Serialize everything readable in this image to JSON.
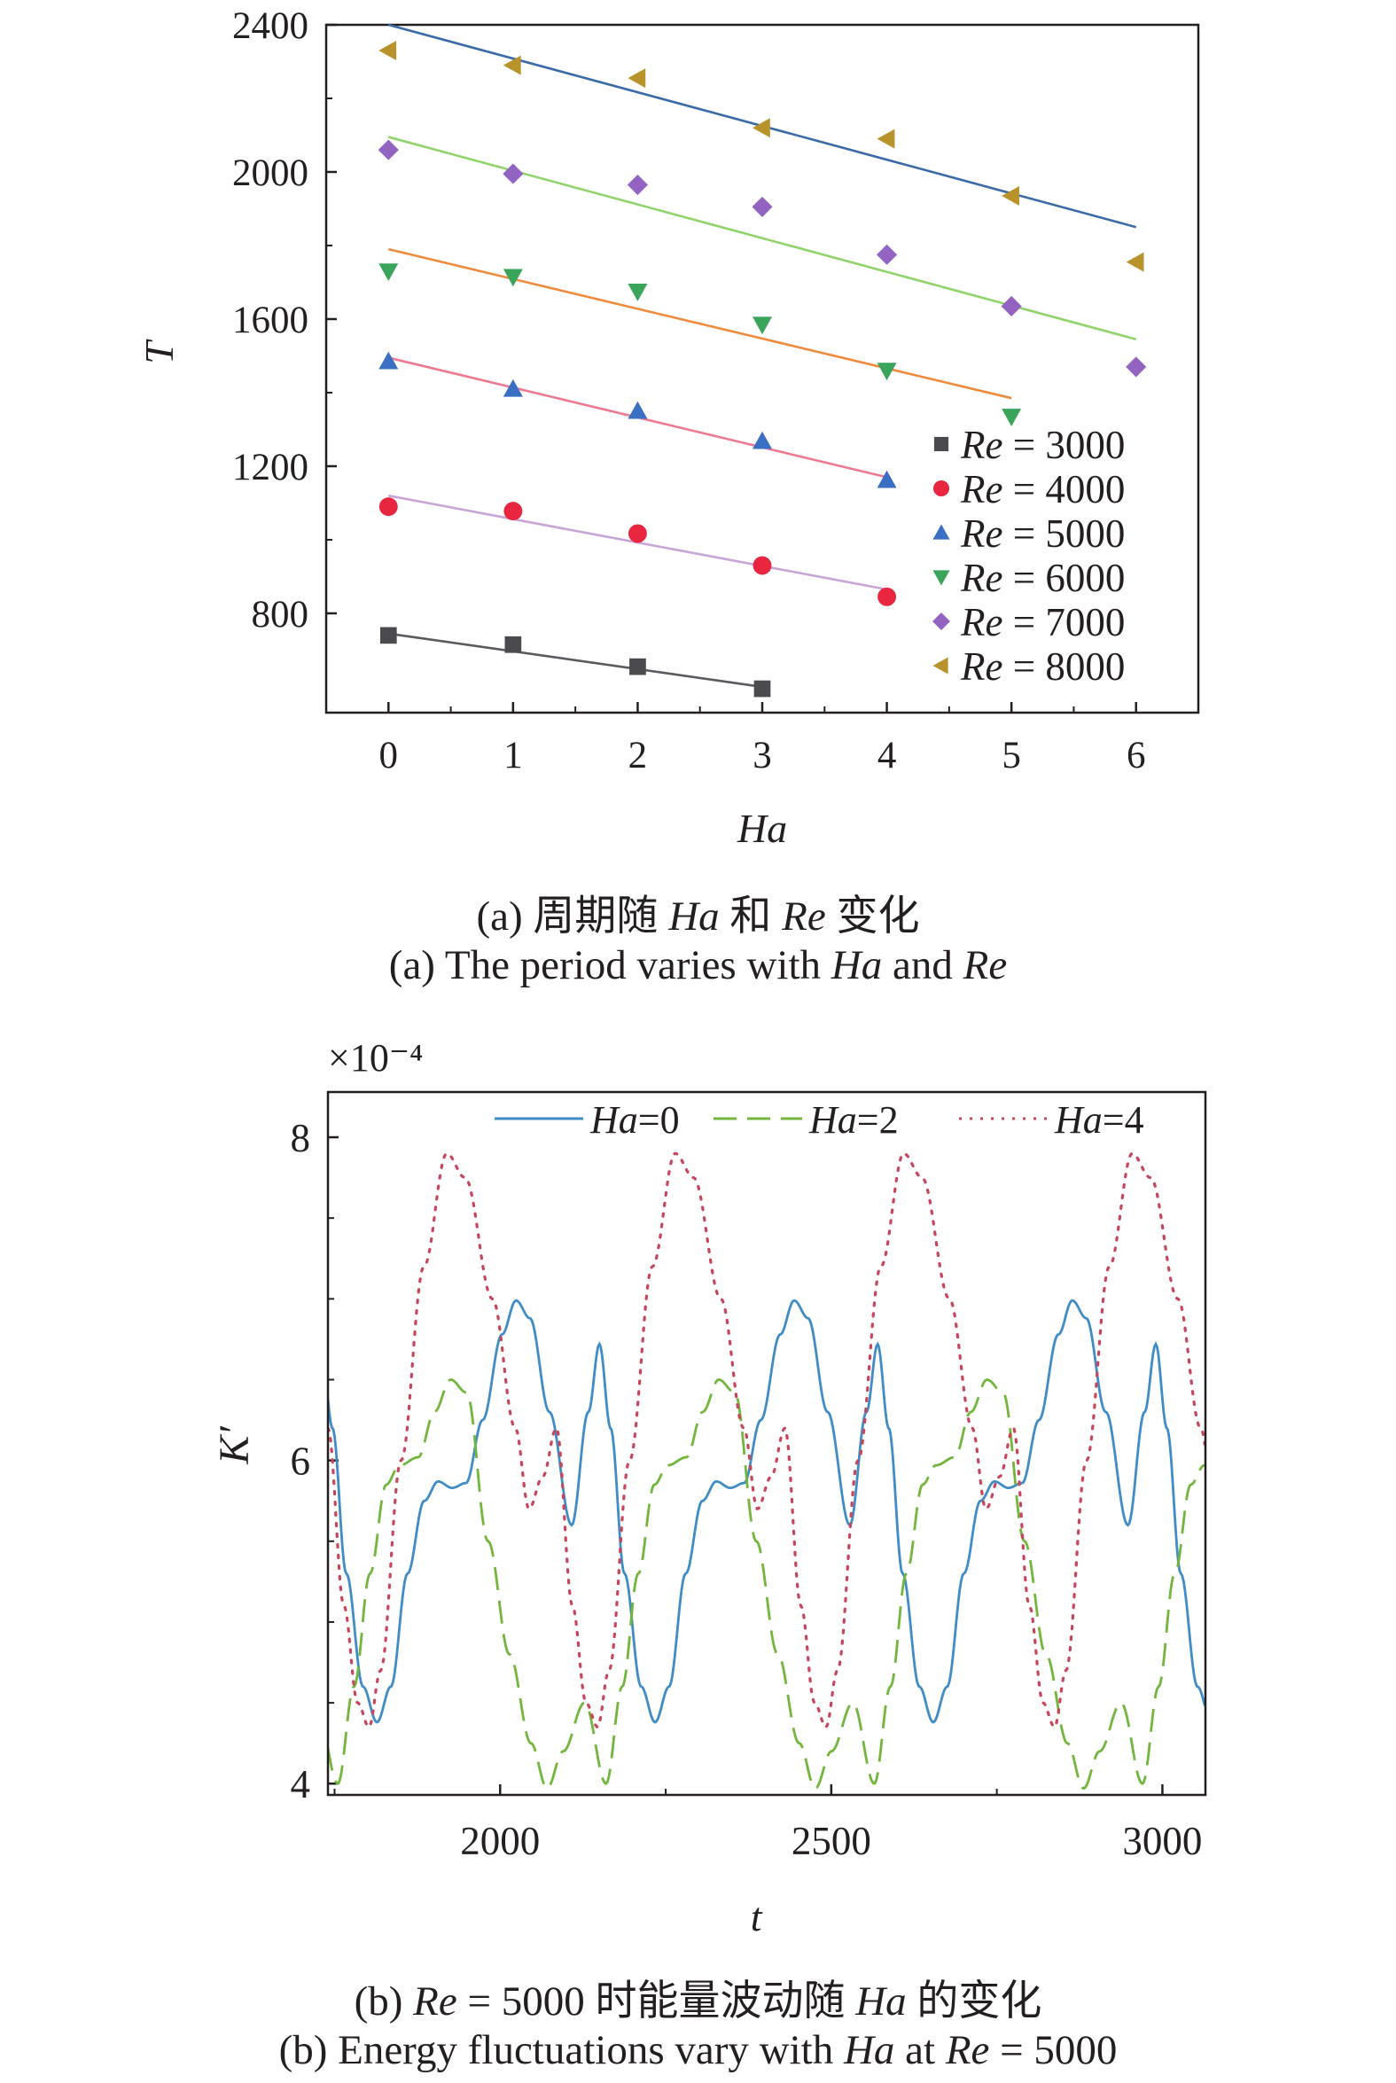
{
  "charts": {
    "a": {
      "chart_data": {
        "type": "scatter",
        "xlabel": "Ha",
        "ylabel": "T",
        "xlim": [
          -0.5,
          6.5
        ],
        "ylim": [
          530,
          2400
        ],
        "xticks": [
          0,
          1,
          2,
          3,
          4,
          5,
          6
        ],
        "yticks": [
          800,
          1200,
          1600,
          2000,
          2400
        ],
        "legend_position": "bottom-right",
        "series": [
          {
            "name": "Re = 3000",
            "label_var": "Re",
            "label_rest": " = 3000",
            "color": "#4a4a4f",
            "marker": "square",
            "x": [
              0,
              1,
              2,
              3
            ],
            "y": [
              740,
              715,
              655,
              595
            ],
            "fit": {
              "x": [
                0,
                3
              ],
              "y": [
                745,
                600
              ]
            }
          },
          {
            "name": "Re = 4000",
            "label_var": "Re",
            "label_rest": " = 4000",
            "color": "#e8263f",
            "marker": "circle",
            "x": [
              0,
              1,
              2,
              3,
              4
            ],
            "y": [
              1090,
              1078,
              1017,
              930,
              845
            ],
            "fit": {
              "x": [
                0,
                4
              ],
              "y": [
                1120,
                865
              ]
            }
          },
          {
            "name": "Re = 5000",
            "label_var": "Re",
            "label_rest": " = 5000",
            "color": "#3a6fc4",
            "marker": "triangle-up",
            "x": [
              0,
              1,
              2,
              3,
              4
            ],
            "y": [
              1485,
              1410,
              1350,
              1268,
              1162
            ],
            "fit": {
              "x": [
                0,
                4
              ],
              "y": [
                1495,
                1170
              ]
            }
          },
          {
            "name": "Re = 6000",
            "label_var": "Re",
            "label_rest": " = 6000",
            "color": "#3aa55a",
            "marker": "triangle-down",
            "x": [
              0,
              1,
              2,
              3,
              4,
              5
            ],
            "y": [
              1730,
              1715,
              1675,
              1585,
              1460,
              1335
            ],
            "fit": {
              "x": [
                0,
                5
              ],
              "y": [
                1790,
                1385
              ]
            }
          },
          {
            "name": "Re = 7000",
            "label_var": "Re",
            "label_rest": " = 7000",
            "color": "#9363c2",
            "marker": "diamond",
            "x": [
              0,
              1,
              2,
              3,
              4,
              5,
              6
            ],
            "y": [
              2060,
              1995,
              1965,
              1905,
              1775,
              1635,
              1470
            ],
            "fit": {
              "x": [
                0,
                6
              ],
              "y": [
                2095,
                1545
              ]
            }
          },
          {
            "name": "Re = 8000",
            "label_var": "Re",
            "label_rest": " = 8000",
            "color": "#b8922a",
            "marker": "triangle-left",
            "x": [
              0,
              1,
              2,
              3,
              4,
              5,
              6
            ],
            "y": [
              2330,
              2290,
              2255,
              2120,
              2090,
              1935,
              1755
            ],
            "fit": {
              "x": [
                0,
                6
              ],
              "y": [
                2400,
                1850
              ]
            }
          }
        ],
        "fit_colors": [
          "#5a5a5f",
          "#c9a4d6",
          "#ee7a92",
          "#f08a3c",
          "#8fd36a",
          "#3b6aa8"
        ]
      },
      "caption_cn": {
        "pre": "(a) 周期随 ",
        "var1": "Ha",
        "mid": " 和 ",
        "var2": "Re",
        "post": " 变化"
      },
      "caption_en": {
        "pre": "(a) The period varies with ",
        "var1": "Ha",
        "mid": " and ",
        "var2": "Re",
        "post": ""
      }
    },
    "b": {
      "chart_data": {
        "type": "line",
        "xlabel": "t",
        "ylabel": "K′",
        "xlim": [
          1740,
          3065
        ],
        "ylim": [
          3.93,
          8.28
        ],
        "xticks": [
          2000,
          2500,
          3000
        ],
        "yticks": [
          4,
          6,
          8
        ],
        "y_multiplier": "×10⁻⁴",
        "legend_position": "top",
        "series": [
          {
            "name": "Ha=0",
            "var": "Ha",
            "rest": "=0",
            "color": "#3f8cc6",
            "style": "solid",
            "period": 420,
            "phase": 1730,
            "shape": [
              [
                0,
                6.72
              ],
              [
                0.04,
                6.2
              ],
              [
                0.09,
                5.3
              ],
              [
                0.15,
                4.6
              ],
              [
                0.2,
                4.38
              ],
              [
                0.25,
                4.6
              ],
              [
                0.31,
                5.3
              ],
              [
                0.37,
                5.75
              ],
              [
                0.42,
                5.87
              ],
              [
                0.47,
                5.83
              ],
              [
                0.52,
                5.86
              ],
              [
                0.58,
                6.25
              ],
              [
                0.65,
                6.78
              ],
              [
                0.7,
                6.99
              ],
              [
                0.75,
                6.88
              ],
              [
                0.82,
                6.3
              ],
              [
                0.9,
                5.6
              ],
              [
                0.96,
                6.3
              ],
              [
                1.0,
                6.72
              ]
            ]
          },
          {
            "name": "Ha=2",
            "var": "Ha",
            "rest": "=2",
            "color": "#72b63c",
            "style": "dashed",
            "period": 405,
            "phase": 1755,
            "shape": [
              [
                0,
                4.0
              ],
              [
                0.06,
                4.6
              ],
              [
                0.12,
                5.3
              ],
              [
                0.18,
                5.85
              ],
              [
                0.23,
                5.97
              ],
              [
                0.3,
                6.02
              ],
              [
                0.36,
                6.3
              ],
              [
                0.42,
                6.5
              ],
              [
                0.48,
                6.42
              ],
              [
                0.56,
                5.5
              ],
              [
                0.64,
                4.8
              ],
              [
                0.72,
                4.25
              ],
              [
                0.78,
                3.97
              ],
              [
                0.84,
                4.2
              ],
              [
                0.92,
                4.5
              ],
              [
                1.0,
                4.0
              ]
            ]
          },
          {
            "name": "Ha=4",
            "var": "Ha",
            "rest": "=4",
            "color": "#c8465c",
            "style": "dotted",
            "period": 345,
            "phase": 1740,
            "shape": [
              [
                0,
                6.2
              ],
              [
                0.07,
                5.1
              ],
              [
                0.13,
                4.5
              ],
              [
                0.18,
                4.35
              ],
              [
                0.23,
                4.7
              ],
              [
                0.32,
                6.0
              ],
              [
                0.42,
                7.2
              ],
              [
                0.52,
                7.9
              ],
              [
                0.6,
                7.75
              ],
              [
                0.72,
                7.0
              ],
              [
                0.82,
                6.2
              ],
              [
                0.88,
                5.7
              ],
              [
                0.94,
                5.9
              ],
              [
                1.0,
                6.2
              ]
            ]
          }
        ]
      },
      "caption_cn": {
        "pre": "(b) ",
        "var1": "Re",
        "mid": " = 5000 时能量波动随 ",
        "var2": "Ha",
        "post": " 的变化"
      },
      "caption_en": {
        "pre": "(b) Energy fluctuations vary with ",
        "var1": "Ha",
        "mid": " at ",
        "var2": "Re",
        "post": " = 5000"
      }
    }
  }
}
